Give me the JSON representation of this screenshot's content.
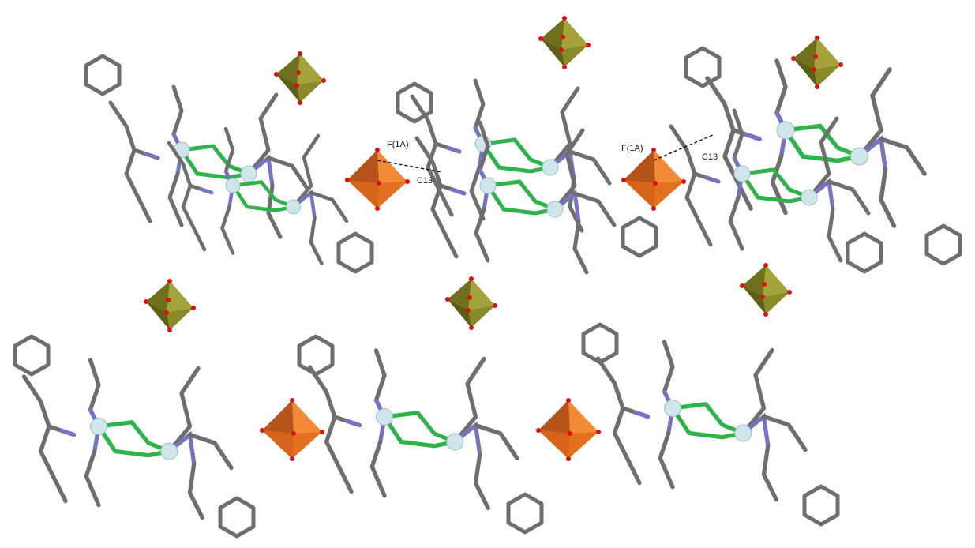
{
  "labels": [
    {
      "text": "F(1A)"
    },
    {
      "text": "C13"
    },
    {
      "text": "F(1A)"
    },
    {
      "text": "C13"
    }
  ]
}
